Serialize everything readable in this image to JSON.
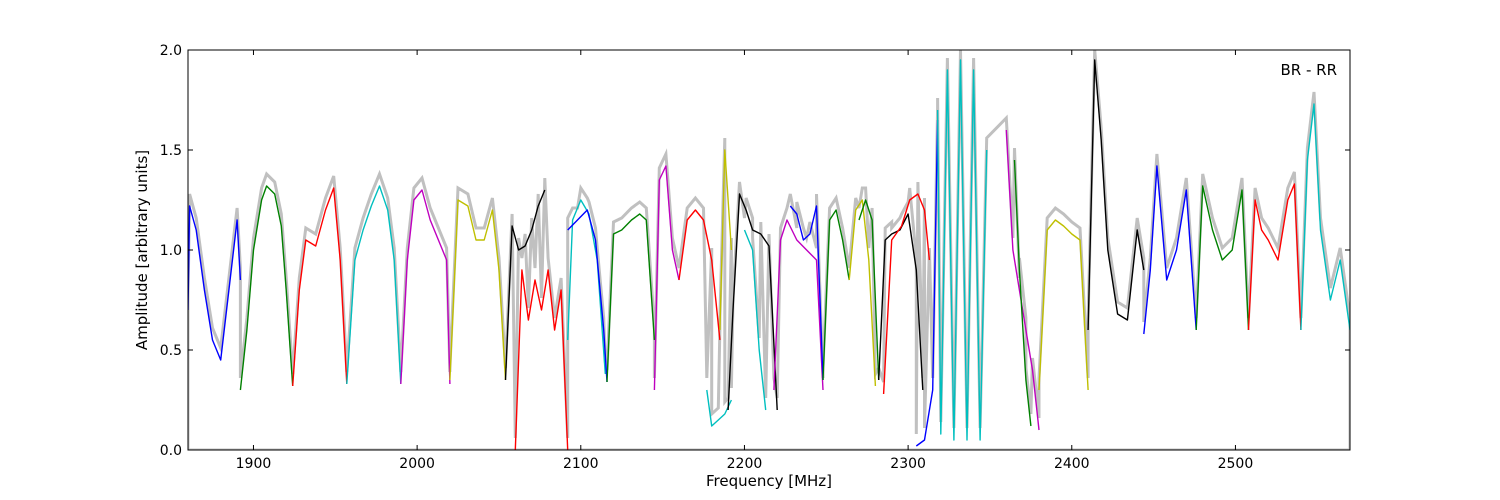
{
  "chart_data": {
    "type": "line",
    "title": "",
    "xlabel": "Frequency [MHz]",
    "ylabel": "Amplitude [arbitrary units]",
    "xlim": [
      1860,
      2570
    ],
    "ylim": [
      0.0,
      2.0
    ],
    "x_ticks": [
      1900,
      2000,
      2100,
      2200,
      2300,
      2400,
      2500
    ],
    "x_tick_labels": [
      "1900",
      "2000",
      "2100",
      "2200",
      "2300",
      "2400",
      "2500"
    ],
    "y_ticks": [
      0.0,
      0.5,
      1.0,
      1.5,
      2.0
    ],
    "y_tick_labels": [
      "0.0",
      "0.5",
      "1.0",
      "1.5",
      "2.0"
    ],
    "grid": false,
    "annotation": "BR - RR",
    "background_color": "#c0c0c0",
    "series": [
      {
        "color": "#0000ff",
        "x": [
          1860,
          1861,
          1865,
          1870,
          1875,
          1880,
          1885,
          1890,
          1892
        ],
        "y": [
          0.7,
          1.22,
          1.1,
          0.8,
          0.55,
          0.45,
          0.8,
          1.15,
          0.85
        ]
      },
      {
        "color": "#008000",
        "x": [
          1892,
          1896,
          1900,
          1905,
          1908,
          1913,
          1917,
          1920,
          1924
        ],
        "y": [
          0.3,
          0.6,
          1.0,
          1.25,
          1.32,
          1.28,
          1.12,
          0.8,
          0.32
        ]
      },
      {
        "color": "#ff0000",
        "x": [
          1924,
          1928,
          1932,
          1938,
          1944,
          1949,
          1953,
          1957
        ],
        "y": [
          0.32,
          0.8,
          1.05,
          1.02,
          1.2,
          1.31,
          0.95,
          0.33
        ]
      },
      {
        "color": "#00bfbf",
        "x": [
          1957,
          1962,
          1967,
          1972,
          1977,
          1982,
          1986,
          1990
        ],
        "y": [
          0.33,
          0.95,
          1.1,
          1.22,
          1.32,
          1.2,
          0.95,
          0.33
        ]
      },
      {
        "color": "#bf00bf",
        "x": [
          1990,
          1994,
          1998,
          2003,
          2008,
          2013,
          2018,
          2020
        ],
        "y": [
          0.33,
          0.95,
          1.25,
          1.3,
          1.15,
          1.05,
          0.95,
          0.33
        ]
      },
      {
        "color": "#bfbf00",
        "x": [
          2020,
          2025,
          2031,
          2036,
          2041,
          2046,
          2050,
          2054
        ],
        "y": [
          0.35,
          1.25,
          1.22,
          1.05,
          1.05,
          1.2,
          0.9,
          0.35
        ]
      },
      {
        "color": "#000000",
        "x": [
          2054,
          2058,
          2062,
          2066,
          2070,
          2074,
          2078
        ],
        "y": [
          0.35,
          1.12,
          1.0,
          1.02,
          1.1,
          1.22,
          1.3
        ]
      },
      {
        "color": "#ff0000",
        "x": [
          2060,
          2064,
          2068,
          2072,
          2076,
          2080,
          2084,
          2088,
          2092
        ],
        "y": [
          0.0,
          0.9,
          0.65,
          0.85,
          0.7,
          0.9,
          0.6,
          0.8,
          0.0
        ]
      },
      {
        "color": "#00bfbf",
        "x": [
          2092,
          2095,
          2100,
          2105,
          2110,
          2115
        ],
        "y": [
          0.55,
          1.15,
          1.25,
          1.18,
          0.95,
          0.38
        ]
      },
      {
        "color": "#0000ff",
        "x": [
          2092,
          2098,
          2104,
          2109,
          2114,
          2116
        ],
        "y": [
          1.1,
          1.15,
          1.2,
          1.05,
          0.6,
          0.34
        ]
      },
      {
        "color": "#008000",
        "x": [
          2116,
          2120,
          2125,
          2131,
          2136,
          2140,
          2145
        ],
        "y": [
          0.34,
          1.08,
          1.1,
          1.15,
          1.18,
          1.15,
          0.55
        ]
      },
      {
        "color": "#bf00bf",
        "x": [
          2145,
          2148,
          2152,
          2156,
          2160
        ],
        "y": [
          0.3,
          1.35,
          1.42,
          1.0,
          0.85
        ]
      },
      {
        "color": "#ff0000",
        "x": [
          2160,
          2165,
          2170,
          2175,
          2180,
          2185
        ],
        "y": [
          0.85,
          1.15,
          1.2,
          1.15,
          0.95,
          0.55
        ]
      },
      {
        "color": "#bfbf00",
        "x": [
          2185,
          2188,
          2192
        ],
        "y": [
          0.6,
          1.5,
          1.0
        ]
      },
      {
        "color": "#00bfbf",
        "x": [
          2177,
          2180,
          2184,
          2188,
          2192
        ],
        "y": [
          0.3,
          0.12,
          0.15,
          0.18,
          0.25
        ]
      },
      {
        "color": "#000000",
        "x": [
          2190,
          2193,
          2197,
          2201,
          2205,
          2210,
          2215,
          2220
        ],
        "y": [
          0.2,
          0.7,
          1.28,
          1.2,
          1.1,
          1.08,
          1.02,
          0.2
        ]
      },
      {
        "color": "#00bfbf",
        "x": [
          2200,
          2205,
          2209,
          2213
        ],
        "y": [
          1.1,
          1.0,
          0.5,
          0.2
        ]
      },
      {
        "color": "#bf00bf",
        "x": [
          2218,
          2222,
          2226,
          2232,
          2238,
          2244,
          2248
        ],
        "y": [
          0.3,
          1.05,
          1.15,
          1.05,
          1.0,
          0.95,
          0.3
        ]
      },
      {
        "color": "#0000ff",
        "x": [
          2228,
          2232,
          2236,
          2240,
          2244,
          2248
        ],
        "y": [
          1.22,
          1.18,
          1.05,
          1.08,
          1.22,
          0.35
        ]
      },
      {
        "color": "#008000",
        "x": [
          2248,
          2252,
          2256,
          2260,
          2264
        ],
        "y": [
          0.35,
          1.15,
          1.2,
          1.05,
          0.85
        ]
      },
      {
        "color": "#bfbf00",
        "x": [
          2264,
          2268,
          2272,
          2276,
          2280
        ],
        "y": [
          0.85,
          1.2,
          1.25,
          0.95,
          0.32
        ]
      },
      {
        "color": "#008000",
        "x": [
          2270,
          2274,
          2278,
          2282
        ],
        "y": [
          1.15,
          1.25,
          1.15,
          0.35
        ]
      },
      {
        "color": "#000000",
        "x": [
          2282,
          2286,
          2290,
          2295,
          2300,
          2305,
          2309
        ],
        "y": [
          0.35,
          1.05,
          1.08,
          1.1,
          1.18,
          0.9,
          0.3
        ]
      },
      {
        "color": "#ff0000",
        "x": [
          2285,
          2290,
          2296,
          2301,
          2306,
          2310,
          2313
        ],
        "y": [
          0.28,
          1.05,
          1.12,
          1.25,
          1.28,
          1.2,
          0.95
        ]
      },
      {
        "color": "#0000ff",
        "x": [
          2305,
          2310,
          2315,
          2318
        ],
        "y": [
          0.02,
          0.05,
          0.3,
          1.65
        ]
      },
      {
        "color": "#00bfbf",
        "x": [
          2318,
          2320,
          2324,
          2328,
          2332,
          2336,
          2340,
          2344,
          2348
        ],
        "y": [
          1.7,
          0.08,
          1.9,
          0.05,
          1.95,
          0.05,
          1.9,
          0.05,
          1.5
        ]
      },
      {
        "color": "#bf00bf",
        "x": [
          2360,
          2364,
          2368,
          2372,
          2376,
          2380
        ],
        "y": [
          1.6,
          1.0,
          0.8,
          0.6,
          0.4,
          0.1
        ]
      },
      {
        "color": "#008000",
        "x": [
          2365,
          2368,
          2372,
          2375
        ],
        "y": [
          1.45,
          0.9,
          0.35,
          0.12
        ]
      },
      {
        "color": "#bfbf00",
        "x": [
          2380,
          2385,
          2390,
          2395,
          2400,
          2405,
          2410
        ],
        "y": [
          0.3,
          1.1,
          1.15,
          1.12,
          1.08,
          1.05,
          0.3
        ]
      },
      {
        "color": "#000000",
        "x": [
          2410,
          2414,
          2418,
          2422,
          2428,
          2434,
          2440,
          2444
        ],
        "y": [
          0.6,
          1.95,
          1.55,
          1.0,
          0.68,
          0.65,
          1.1,
          0.9
        ]
      },
      {
        "color": "#0000ff",
        "x": [
          2444,
          2448,
          2452,
          2458,
          2464,
          2470,
          2476
        ],
        "y": [
          0.58,
          0.9,
          1.42,
          0.85,
          1.0,
          1.3,
          0.6
        ]
      },
      {
        "color": "#008000",
        "x": [
          2476,
          2480,
          2486,
          2492,
          2498,
          2504,
          2508
        ],
        "y": [
          0.6,
          1.32,
          1.1,
          0.95,
          1.0,
          1.3,
          0.6
        ]
      },
      {
        "color": "#ff0000",
        "x": [
          2508,
          2512,
          2516,
          2520,
          2526,
          2532,
          2536,
          2540
        ],
        "y": [
          0.6,
          1.25,
          1.1,
          1.05,
          0.95,
          1.25,
          1.33,
          0.6
        ]
      },
      {
        "color": "#00bfbf",
        "x": [
          2540,
          2544,
          2548,
          2552,
          2558,
          2564,
          2570
        ],
        "y": [
          0.6,
          1.45,
          1.73,
          1.1,
          0.75,
          0.95,
          0.6
        ]
      }
    ]
  }
}
